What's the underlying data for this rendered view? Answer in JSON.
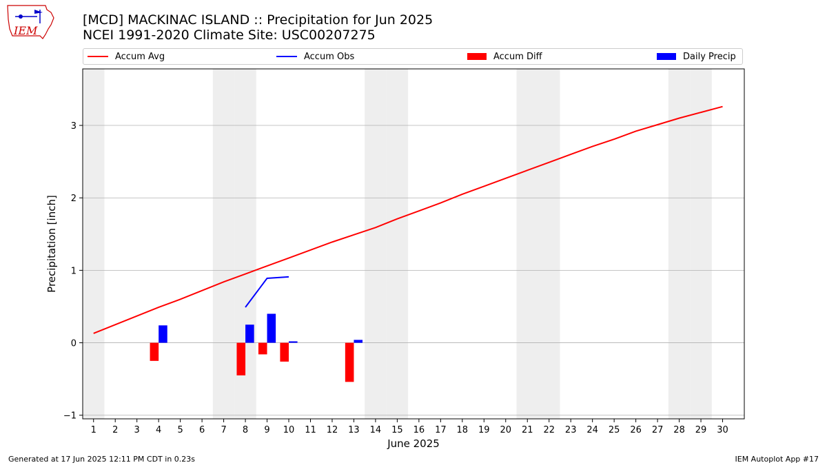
{
  "header": {
    "title_line1": "[MCD] MACKINAC ISLAND :: Precipitation for Jun 2025",
    "title_line2": "NCEI 1991-2020 Climate Site: USC00207275",
    "logo_text": "IEM"
  },
  "legend": {
    "items": [
      {
        "label": "Accum Avg",
        "kind": "line",
        "color": "#ff0000"
      },
      {
        "label": "Accum Obs",
        "kind": "line",
        "color": "#0000ff"
      },
      {
        "label": "Accum Diff",
        "kind": "box",
        "color": "#ff0000"
      },
      {
        "label": "Daily Precip",
        "kind": "box",
        "color": "#0000ff"
      }
    ]
  },
  "footer": {
    "left": "Generated at 17 Jun 2025 12:11 PM CDT in 0.23s",
    "right": "IEM Autoplot App #17"
  },
  "chart_data": {
    "type": "bar",
    "title": "[MCD] MACKINAC ISLAND :: Precipitation for Jun 2025",
    "subtitle": "NCEI 1991-2020 Climate Site: USC00207275",
    "xlabel": "June 2025",
    "ylabel": "Precipitation [inch]",
    "xlim": [
      0.5,
      31.0
    ],
    "ylim": [
      -1.05,
      3.78
    ],
    "yticks": [
      -1,
      0,
      1,
      2,
      3
    ],
    "x": [
      1,
      2,
      3,
      4,
      5,
      6,
      7,
      8,
      9,
      10,
      11,
      12,
      13,
      14,
      15,
      16,
      17,
      18,
      19,
      20,
      21,
      22,
      23,
      24,
      25,
      26,
      27,
      28,
      29,
      30
    ],
    "weekend_days": [
      1,
      7,
      8,
      14,
      15,
      21,
      22,
      28,
      29
    ],
    "grid": "horizontal",
    "legend_position": "top",
    "series": [
      {
        "name": "Accum Avg",
        "kind": "line",
        "color": "#ff0000",
        "x": [
          1,
          2,
          3,
          4,
          5,
          6,
          7,
          8,
          9,
          10,
          11,
          12,
          13,
          14,
          15,
          16,
          17,
          18,
          19,
          20,
          21,
          22,
          23,
          24,
          25,
          26,
          27,
          28,
          29,
          30
        ],
        "values": [
          0.13,
          0.25,
          0.37,
          0.49,
          0.6,
          0.72,
          0.84,
          0.95,
          1.06,
          1.17,
          1.28,
          1.39,
          1.49,
          1.59,
          1.71,
          1.82,
          1.93,
          2.05,
          2.16,
          2.27,
          2.38,
          2.49,
          2.6,
          2.71,
          2.81,
          2.92,
          3.01,
          3.1,
          3.18,
          3.26
        ]
      },
      {
        "name": "Accum Obs",
        "kind": "line",
        "color": "#0000ff",
        "x": [
          8,
          9,
          10
        ],
        "values": [
          0.49,
          0.89,
          0.91
        ]
      },
      {
        "name": "Accum Diff",
        "kind": "bar",
        "color": "#ff0000",
        "offset": -0.2,
        "x": [
          4,
          8,
          9,
          10,
          13
        ],
        "values": [
          -0.25,
          -0.45,
          -0.16,
          -0.26,
          -0.54
        ]
      },
      {
        "name": "Daily Precip",
        "kind": "bar",
        "color": "#0000ff",
        "offset": 0.2,
        "x": [
          4,
          8,
          9,
          10,
          13
        ],
        "values": [
          0.24,
          0.25,
          0.4,
          0.02,
          0.04
        ]
      }
    ]
  }
}
